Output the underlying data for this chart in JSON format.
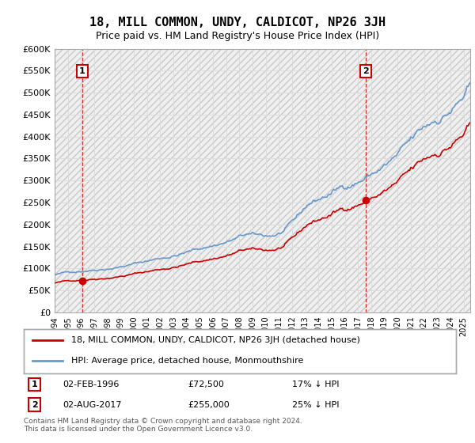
{
  "title": "18, MILL COMMON, UNDY, CALDICOT, NP26 3JH",
  "subtitle": "Price paid vs. HM Land Registry's House Price Index (HPI)",
  "ylim": [
    0,
    600000
  ],
  "yticks": [
    0,
    50000,
    100000,
    150000,
    200000,
    250000,
    300000,
    350000,
    400000,
    450000,
    500000,
    550000,
    600000
  ],
  "xlim_start": 1994.0,
  "xlim_end": 2025.5,
  "sale1_x": 1996.085,
  "sale1_y": 72500,
  "sale2_x": 2017.585,
  "sale2_y": 255000,
  "sale1_label": "1",
  "sale2_label": "2",
  "legend_line1": "18, MILL COMMON, UNDY, CALDICOT, NP26 3JH (detached house)",
  "legend_line2": "HPI: Average price, detached house, Monmouthshire",
  "note1_label": "1",
  "note1_date": "02-FEB-1996",
  "note1_price": "£72,500",
  "note1_hpi": "17% ↓ HPI",
  "note2_label": "2",
  "note2_date": "02-AUG-2017",
  "note2_price": "£255,000",
  "note2_hpi": "25% ↓ HPI",
  "footer": "Contains HM Land Registry data © Crown copyright and database right 2024.\nThis data is licensed under the Open Government Licence v3.0.",
  "hpi_color": "#6699cc",
  "price_color": "#cc0000",
  "sale_dot_color": "#cc0000",
  "grid_color": "#dddddd",
  "bg_color": "#f0f0f0",
  "dashed_vline_color": "#cc0000"
}
